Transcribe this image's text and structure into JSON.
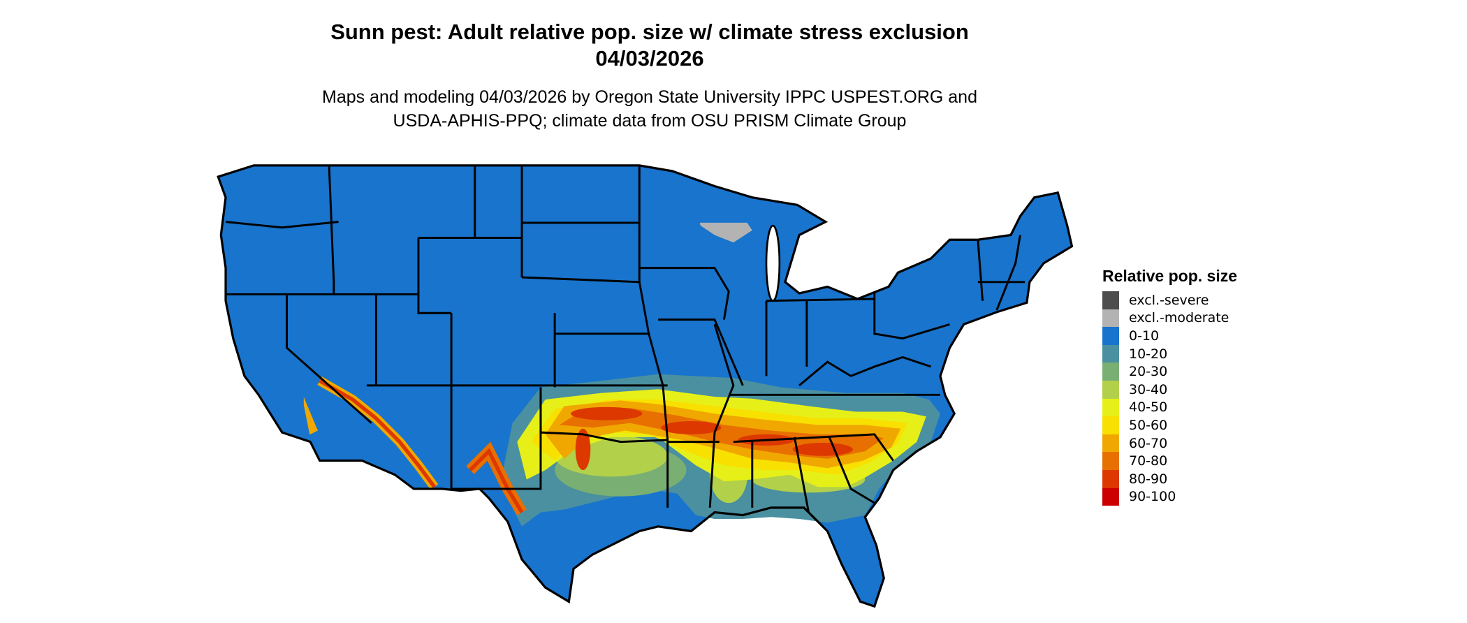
{
  "title": {
    "line1": "Sunn pest: Adult relative pop. size w/ climate stress exclusion",
    "line2": "04/03/2026"
  },
  "subtitle": {
    "line1": "Maps and modeling 04/03/2026 by Oregon State University IPPC USPEST.ORG and",
    "line2": "USDA-APHIS-PPQ; climate data from OSU PRISM Climate Group"
  },
  "map": {
    "region": "Contiguous United States",
    "background_class_color": "#1874cd",
    "border_color": "#000000"
  },
  "legend": {
    "title": "Relative pop. size",
    "items": [
      {
        "label": "excl.-severe",
        "color": "#4d4d4d"
      },
      {
        "label": "excl.-moderate",
        "color": "#b3b3b3"
      },
      {
        "label": "0-10",
        "color": "#1874cd"
      },
      {
        "label": "10-20",
        "color": "#4a90a0"
      },
      {
        "label": "20-30",
        "color": "#7aaf74"
      },
      {
        "label": "30-40",
        "color": "#b2d04a"
      },
      {
        "label": "40-50",
        "color": "#e6f018"
      },
      {
        "label": "50-60",
        "color": "#f8e000"
      },
      {
        "label": "60-70",
        "color": "#f0a800"
      },
      {
        "label": "70-80",
        "color": "#e87000"
      },
      {
        "label": "80-90",
        "color": "#dc3800"
      },
      {
        "label": "90-100",
        "color": "#cc0000"
      }
    ]
  }
}
